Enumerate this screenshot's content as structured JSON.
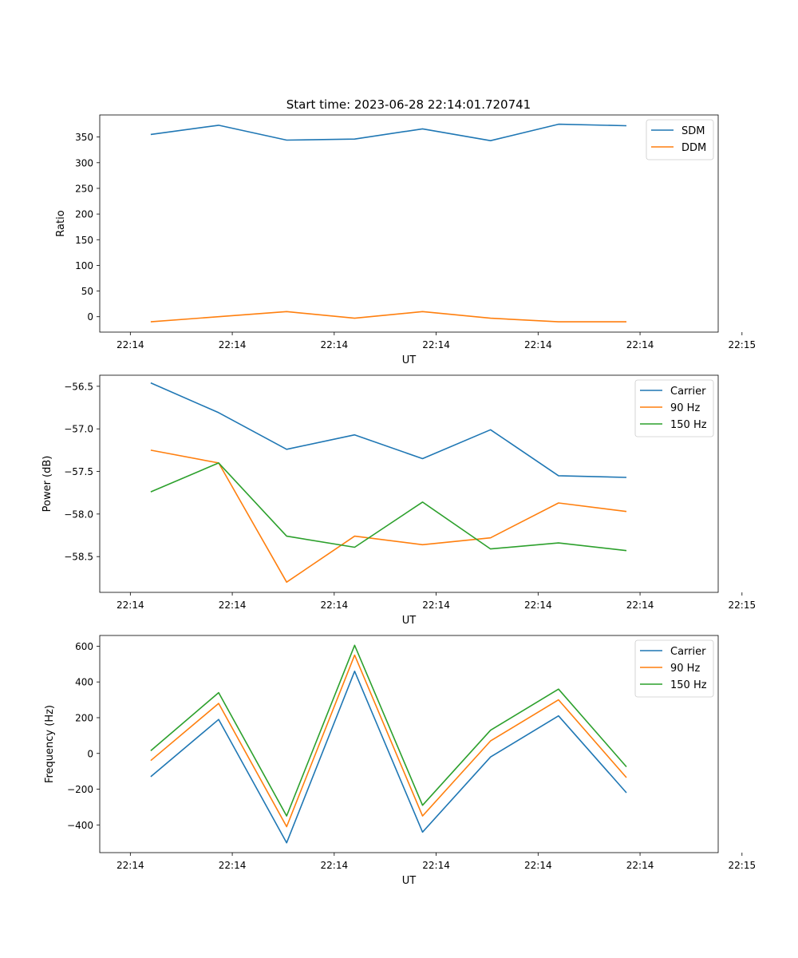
{
  "figure": {
    "title": "Start time: 2023-06-28 22:14:01.720741"
  },
  "chart_data": [
    {
      "type": "line",
      "xlabel": "UT",
      "ylabel": "Ratio",
      "x_tick_labels": [
        "22:14",
        "22:14",
        "22:14",
        "22:14",
        "22:14",
        "22:14",
        "22:15"
      ],
      "x_range": [
        -0.45,
        8.65
      ],
      "x": [
        0.3,
        1.3,
        2.3,
        3.3,
        4.3,
        5.3,
        6.3,
        7.3
      ],
      "ylim": [
        -30,
        393
      ],
      "yticks": [
        0,
        50,
        100,
        150,
        200,
        250,
        300,
        350
      ],
      "grid": false,
      "legend_position": "top-right",
      "series": [
        {
          "name": "SDM",
          "color": "#1f77b4",
          "values": [
            355,
            373,
            344,
            346,
            366,
            343,
            375,
            372
          ]
        },
        {
          "name": "DDM",
          "color": "#ff7f0e",
          "values": [
            -10,
            0,
            10,
            -3,
            10,
            -3,
            -10,
            -10
          ]
        }
      ]
    },
    {
      "type": "line",
      "xlabel": "UT",
      "ylabel": "Power (dB)",
      "x_tick_labels": [
        "22:14",
        "22:14",
        "22:14",
        "22:14",
        "22:14",
        "22:14",
        "22:15"
      ],
      "x_range": [
        -0.45,
        8.65
      ],
      "x": [
        0.3,
        1.3,
        2.3,
        3.3,
        4.3,
        5.3,
        6.3,
        7.3
      ],
      "ylim": [
        -58.92,
        -56.37
      ],
      "yticks": [
        -58.5,
        -58.0,
        -57.5,
        -57.0,
        -56.5
      ],
      "ytick_labels": [
        "−58.5",
        "−58.0",
        "−57.5",
        "−57.0",
        "−56.5"
      ],
      "grid": false,
      "legend_position": "top-right",
      "series": [
        {
          "name": "Carrier",
          "color": "#1f77b4",
          "values": [
            -56.46,
            -56.81,
            -57.24,
            -57.07,
            -57.35,
            -57.01,
            -57.55,
            -57.57
          ]
        },
        {
          "name": "90 Hz",
          "color": "#ff7f0e",
          "values": [
            -57.25,
            -57.4,
            -58.8,
            -58.26,
            -58.36,
            -58.28,
            -57.87,
            -57.97
          ]
        },
        {
          "name": "150 Hz",
          "color": "#2ca02c",
          "values": [
            -57.74,
            -57.4,
            -58.26,
            -58.39,
            -57.86,
            -58.41,
            -58.34,
            -58.43
          ]
        }
      ]
    },
    {
      "type": "line",
      "xlabel": "UT",
      "ylabel": "Frequency (Hz)",
      "x_tick_labels": [
        "22:14",
        "22:14",
        "22:14",
        "22:14",
        "22:14",
        "22:14",
        "22:15"
      ],
      "x_range": [
        -0.45,
        8.65
      ],
      "x": [
        0.3,
        1.3,
        2.3,
        3.3,
        4.3,
        5.3,
        6.3,
        7.3
      ],
      "ylim": [
        -555,
        660
      ],
      "yticks": [
        -400,
        -200,
        0,
        200,
        400,
        600
      ],
      "ytick_labels": [
        "−400",
        "−200",
        "0",
        "200",
        "400",
        "600"
      ],
      "grid": false,
      "legend_position": "top-right",
      "series": [
        {
          "name": "Carrier",
          "color": "#1f77b4",
          "values": [
            -130,
            190,
            -500,
            460,
            -440,
            -20,
            210,
            -220
          ]
        },
        {
          "name": "90 Hz",
          "color": "#ff7f0e",
          "values": [
            -40,
            280,
            -410,
            550,
            -350,
            70,
            300,
            -135
          ]
        },
        {
          "name": "150 Hz",
          "color": "#2ca02c",
          "values": [
            15,
            340,
            -350,
            605,
            -290,
            130,
            360,
            -75
          ]
        }
      ]
    }
  ]
}
